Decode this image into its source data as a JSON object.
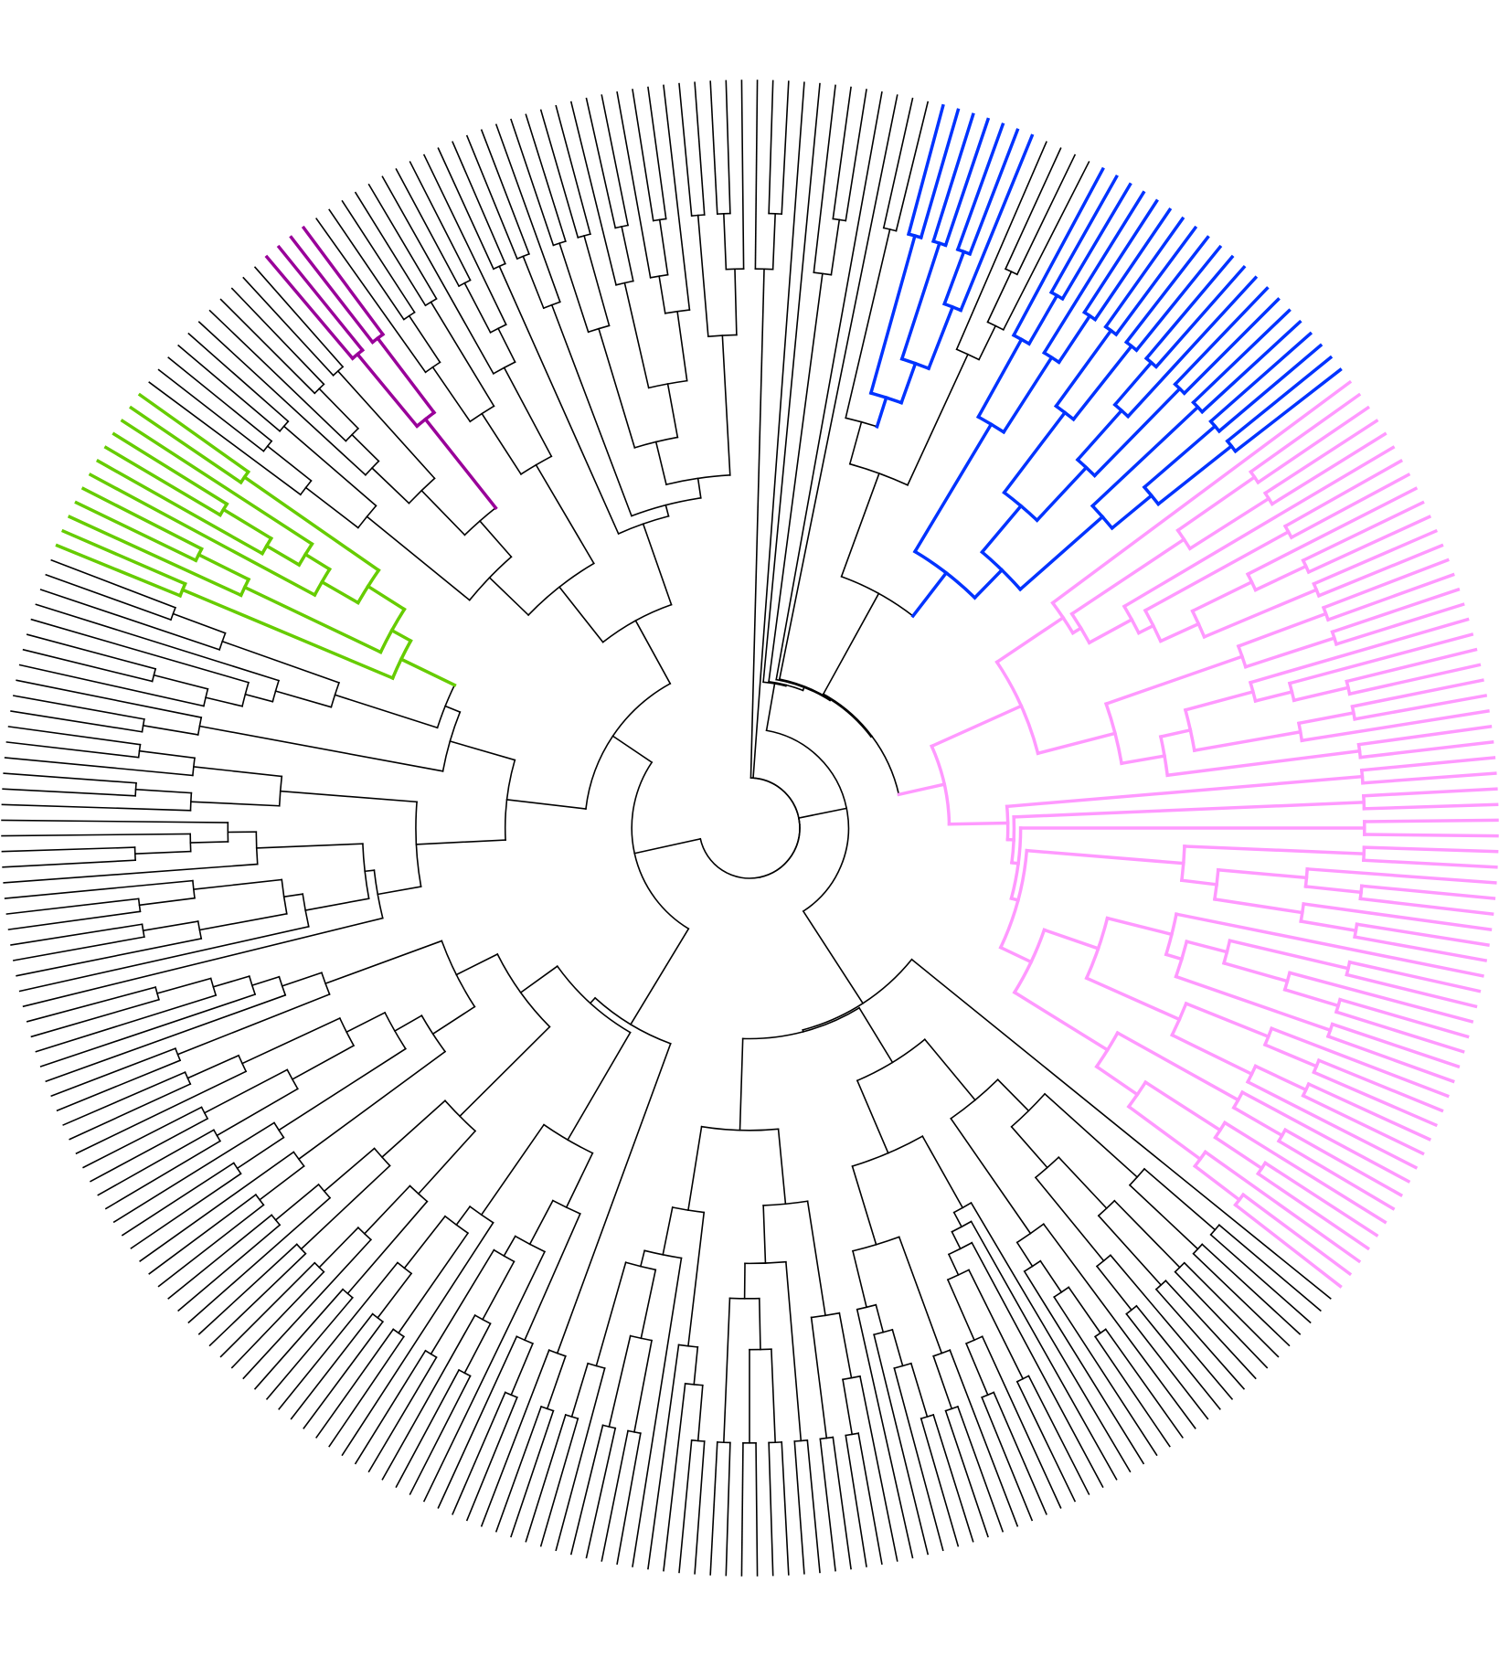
{
  "tree": {
    "layout": "circular",
    "tip_count": 300,
    "branch_color": "#000000",
    "highlight_colors": {
      "blue": "#0033ff",
      "purple": "#990099",
      "pink": "#ff99ff",
      "green": "#66cc00",
      "red": "#ff0033",
      "orange": "#ff6600",
      "brown": "#996600"
    }
  }
}
